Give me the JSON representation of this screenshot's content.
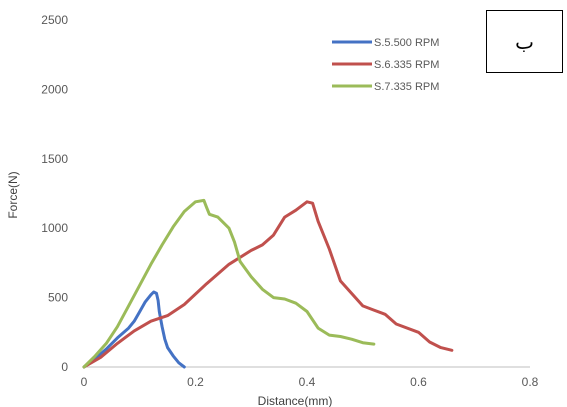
{
  "chart_data": {
    "type": "line",
    "title": "",
    "xlabel": "Distance(mm)",
    "ylabel": "Force(N)",
    "xlim": [
      0,
      0.8
    ],
    "ylim": [
      0,
      2500
    ],
    "xticks": [
      "0",
      "0.2",
      "0.4",
      "0.6",
      "0.8"
    ],
    "yticks": [
      "0",
      "500",
      "1000",
      "1500",
      "2000",
      "2500"
    ],
    "grid": false,
    "legend_position": "top-right",
    "series": [
      {
        "name": "S.5.500 RPM",
        "color": "#4472C4",
        "points": [
          [
            0.0,
            0
          ],
          [
            0.02,
            60
          ],
          [
            0.04,
            130
          ],
          [
            0.06,
            210
          ],
          [
            0.08,
            280
          ],
          [
            0.09,
            330
          ],
          [
            0.1,
            400
          ],
          [
            0.11,
            470
          ],
          [
            0.12,
            520
          ],
          [
            0.125,
            540
          ],
          [
            0.13,
            530
          ],
          [
            0.133,
            480
          ],
          [
            0.135,
            400
          ],
          [
            0.14,
            290
          ],
          [
            0.145,
            200
          ],
          [
            0.15,
            140
          ],
          [
            0.16,
            80
          ],
          [
            0.17,
            30
          ],
          [
            0.18,
            0
          ]
        ]
      },
      {
        "name": "S.6.335 RPM",
        "color": "#C0504D",
        "points": [
          [
            0.0,
            0
          ],
          [
            0.03,
            70
          ],
          [
            0.06,
            170
          ],
          [
            0.09,
            260
          ],
          [
            0.12,
            330
          ],
          [
            0.15,
            370
          ],
          [
            0.18,
            450
          ],
          [
            0.22,
            600
          ],
          [
            0.26,
            740
          ],
          [
            0.3,
            840
          ],
          [
            0.32,
            880
          ],
          [
            0.34,
            950
          ],
          [
            0.36,
            1080
          ],
          [
            0.38,
            1130
          ],
          [
            0.4,
            1190
          ],
          [
            0.41,
            1180
          ],
          [
            0.42,
            1050
          ],
          [
            0.44,
            850
          ],
          [
            0.46,
            620
          ],
          [
            0.48,
            530
          ],
          [
            0.5,
            440
          ],
          [
            0.52,
            410
          ],
          [
            0.54,
            380
          ],
          [
            0.56,
            310
          ],
          [
            0.6,
            250
          ],
          [
            0.62,
            180
          ],
          [
            0.64,
            140
          ],
          [
            0.66,
            120
          ]
        ]
      },
      {
        "name": "S.7.335 RPM",
        "color": "#9BBB59",
        "points": [
          [
            0.0,
            0
          ],
          [
            0.02,
            80
          ],
          [
            0.04,
            170
          ],
          [
            0.06,
            290
          ],
          [
            0.08,
            440
          ],
          [
            0.1,
            590
          ],
          [
            0.12,
            740
          ],
          [
            0.14,
            880
          ],
          [
            0.16,
            1010
          ],
          [
            0.18,
            1120
          ],
          [
            0.2,
            1190
          ],
          [
            0.215,
            1200
          ],
          [
            0.22,
            1150
          ],
          [
            0.225,
            1100
          ],
          [
            0.24,
            1080
          ],
          [
            0.26,
            1000
          ],
          [
            0.27,
            900
          ],
          [
            0.28,
            760
          ],
          [
            0.3,
            650
          ],
          [
            0.32,
            560
          ],
          [
            0.34,
            500
          ],
          [
            0.36,
            490
          ],
          [
            0.38,
            460
          ],
          [
            0.4,
            400
          ],
          [
            0.42,
            280
          ],
          [
            0.44,
            230
          ],
          [
            0.46,
            220
          ],
          [
            0.48,
            200
          ],
          [
            0.5,
            175
          ],
          [
            0.52,
            165
          ]
        ]
      }
    ]
  },
  "corner_label": "ب"
}
